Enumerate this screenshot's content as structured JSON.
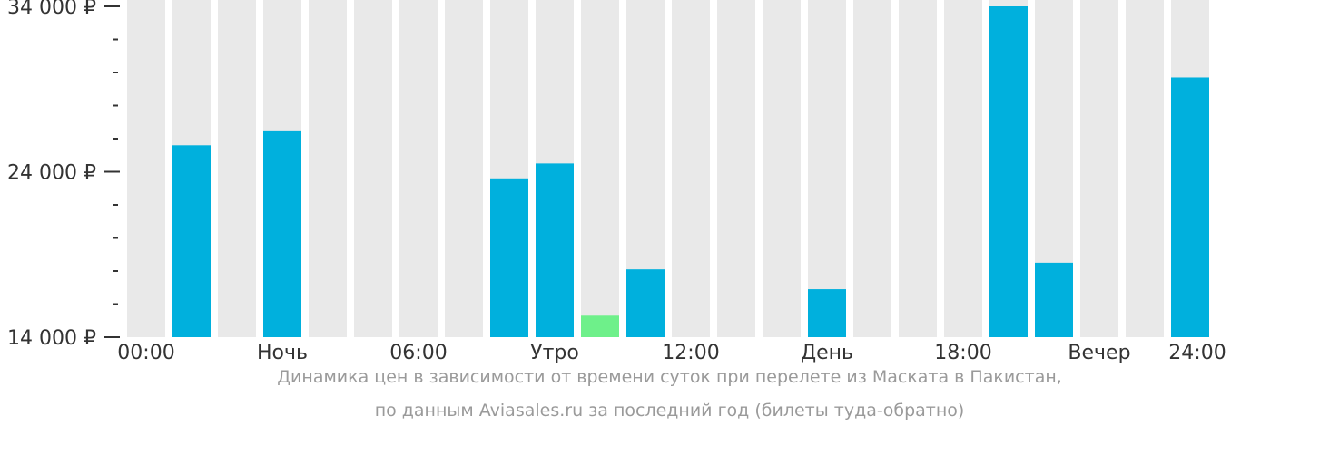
{
  "chart_data": {
    "type": "bar",
    "ylim": [
      14000,
      34000
    ],
    "y_tick_values": [
      14000,
      24000,
      34000
    ],
    "y_tick_labels": [
      "14 000 ₽",
      "24 000 ₽",
      "34 000 ₽"
    ],
    "x_tick_labels": [
      "00:00",
      "Ночь",
      "06:00",
      "Утро",
      "12:00",
      "День",
      "18:00",
      "Вечер",
      "24:00"
    ],
    "categories": [
      "0",
      "1",
      "2",
      "3",
      "4",
      "5",
      "6",
      "7",
      "8",
      "9",
      "10",
      "11",
      "12",
      "13",
      "14",
      "15",
      "16",
      "17",
      "18",
      "19",
      "20",
      "21",
      "22",
      "23"
    ],
    "values": [
      null,
      25600,
      null,
      26500,
      null,
      null,
      null,
      null,
      23600,
      24500,
      15300,
      18100,
      null,
      null,
      null,
      16900,
      null,
      null,
      null,
      34000,
      18500,
      null,
      null,
      29700
    ],
    "highlight_index": 10
  },
  "colors": {
    "background_bar": "#e9e9e9",
    "bar": "#00b0dd",
    "highlight": "#6ef08a",
    "axis": "#333333"
  },
  "caption": {
    "line1": "Динамика цен в зависимости от времени суток при перелете из Маската в Пакистан,",
    "line2": "по данным Aviasales.ru за последний год (билеты туда-обратно)"
  }
}
